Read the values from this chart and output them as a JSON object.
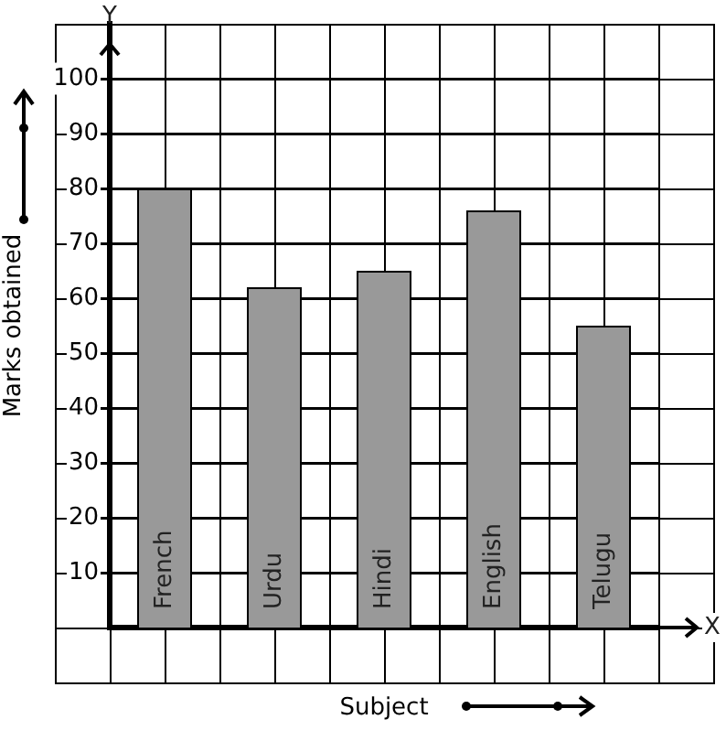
{
  "chart_data": {
    "type": "bar",
    "xlabel": "Subject",
    "ylabel": "Marks obtained",
    "categories": [
      "French",
      "Urdu",
      "Hindi",
      "English",
      "Telugu"
    ],
    "values": [
      80,
      62,
      65,
      76,
      55
    ],
    "color": "#999999",
    "ylim": [
      0,
      110
    ],
    "yticks": [
      10,
      20,
      30,
      40,
      50,
      60,
      70,
      80,
      90,
      100
    ],
    "grid": true,
    "legend": false,
    "annotations": [
      "X",
      "Y"
    ]
  }
}
